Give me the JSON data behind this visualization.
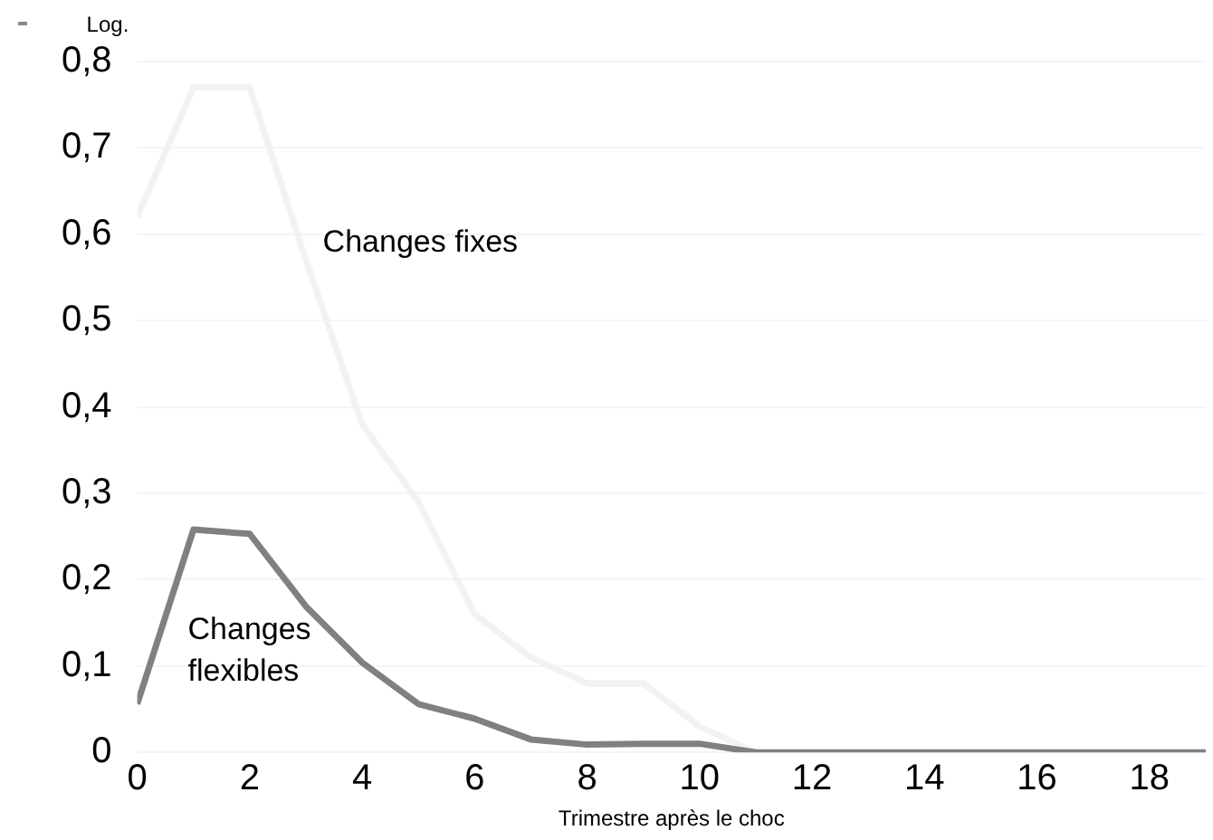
{
  "chart_data": {
    "type": "line",
    "ylabel": "Log.",
    "xlabel": "Trimestre après le choc",
    "x": [
      0,
      1,
      2,
      3,
      4,
      5,
      6,
      7,
      8,
      9,
      10,
      11,
      12,
      13,
      14,
      15,
      16,
      17,
      18,
      19
    ],
    "series": [
      {
        "name": "Changes fixes",
        "color": "#f2f2f2",
        "values": [
          0.62,
          0.77,
          0.77,
          0.57,
          0.38,
          0.29,
          0.16,
          0.11,
          0.08,
          0.08,
          0.03,
          0,
          0,
          0,
          0,
          0,
          0,
          0,
          0,
          0
        ]
      },
      {
        "name": "Changes flexibles",
        "color": "#808080",
        "values": [
          0.056,
          0.258,
          0.253,
          0.169,
          0.104,
          0.056,
          0.039,
          0.015,
          0.009,
          0.01,
          0.01,
          0,
          0,
          0,
          0,
          0,
          0,
          0,
          0,
          0
        ]
      }
    ],
    "xlim": [
      0,
      19
    ],
    "xticks": [
      0,
      2,
      4,
      6,
      8,
      10,
      12,
      14,
      16,
      18
    ],
    "ylim": [
      0,
      0.8
    ],
    "yticks": [
      {
        "value": 0,
        "label": "0"
      },
      {
        "value": 0.1,
        "label": "0,1"
      },
      {
        "value": 0.2,
        "label": "0,2"
      },
      {
        "value": 0.3,
        "label": "0,3"
      },
      {
        "value": 0.4,
        "label": "0,4"
      },
      {
        "value": 0.5,
        "label": "0,5"
      },
      {
        "value": 0.6,
        "label": "0,6"
      },
      {
        "value": 0.7,
        "label": "0,7"
      },
      {
        "value": 0.8,
        "label": "0,8"
      }
    ],
    "grid": "y",
    "legend": false,
    "marker": "none",
    "line_style": "solid"
  }
}
